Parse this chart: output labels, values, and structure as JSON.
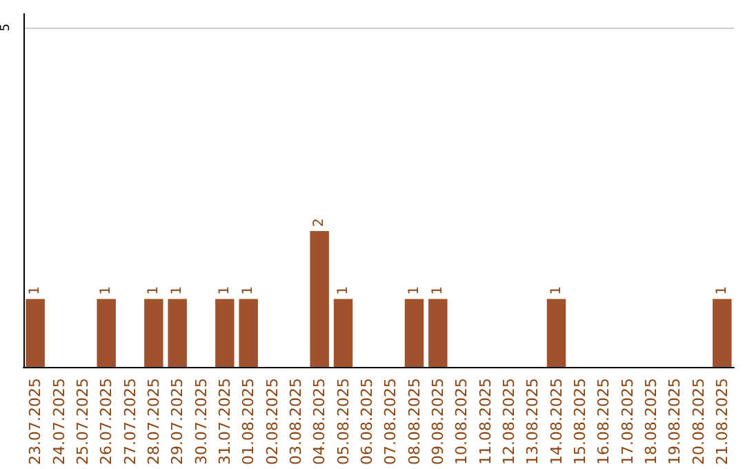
{
  "chart_data": {
    "type": "bar",
    "categories": [
      "23.07.2025",
      "24.07.2025",
      "25.07.2025",
      "26.07.2025",
      "27.07.2025",
      "28.07.2025",
      "29.07.2025",
      "30.07.2025",
      "31.07.2025",
      "01.08.2025",
      "02.08.2025",
      "03.08.2025",
      "04.08.2025",
      "05.08.2025",
      "06.08.2025",
      "07.08.2025",
      "08.08.2025",
      "09.08.2025",
      "10.08.2025",
      "11.08.2025",
      "12.08.2025",
      "13.08.2025",
      "14.08.2025",
      "15.08.2025",
      "16.08.2025",
      "17.08.2025",
      "18.08.2025",
      "19.08.2025",
      "20.08.2025",
      "21.08.2025"
    ],
    "values": [
      1,
      0,
      0,
      1,
      0,
      1,
      1,
      0,
      1,
      1,
      0,
      0,
      2,
      1,
      0,
      0,
      1,
      1,
      0,
      0,
      0,
      0,
      1,
      0,
      0,
      0,
      0,
      0,
      0,
      1
    ],
    "value_labels": [
      "1",
      null,
      null,
      "1",
      null,
      "1",
      "1",
      null,
      "1",
      "1",
      null,
      null,
      "2",
      "1",
      null,
      null,
      "1",
      "1",
      null,
      null,
      null,
      null,
      "1",
      null,
      null,
      null,
      null,
      null,
      null,
      "1"
    ],
    "color": "#a0522d",
    "ylim": [
      0,
      5.2
    ],
    "yticks": [
      5
    ],
    "grid": "y"
  }
}
